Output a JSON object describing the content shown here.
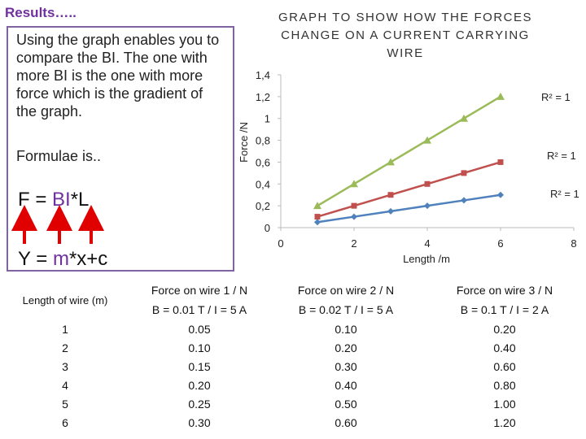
{
  "heading": "Results…..",
  "explanation": "Using the graph enables you to compare the BI. The one with more BI is the one with more force which is the gradient of the graph.",
  "formula_label": "Formulae is..",
  "formulas": [
    [
      "F = ",
      "BI",
      "*L"
    ],
    [
      "Y = ",
      "m",
      "*x+c"
    ]
  ],
  "chart_data": {
    "type": "line",
    "title": "GRAPH TO SHOW HOW THE FORCES CHANGE ON A CURRENT CARRYING WIRE",
    "x_label": "Length /m",
    "y_label": "Force /N",
    "x": [
      1,
      2,
      3,
      4,
      5,
      6
    ],
    "series": [
      {
        "color": "#4f81bd",
        "marker": "diamond",
        "values": [
          0.05,
          0.1,
          0.15,
          0.2,
          0.25,
          0.3
        ]
      },
      {
        "color": "#c0504d",
        "marker": "square",
        "values": [
          0.1,
          0.2,
          0.3,
          0.4,
          0.5,
          0.6
        ]
      },
      {
        "color": "#9bbb59",
        "marker": "triangle",
        "values": [
          0.2,
          0.4,
          0.6,
          0.8,
          1.0,
          1.2
        ]
      }
    ],
    "annotations": [
      "R² = 1",
      "R² = 1",
      "R² = 1"
    ],
    "xlim": [
      0,
      8
    ],
    "xticks": [
      0,
      2,
      4,
      6,
      8
    ],
    "ylim": [
      0,
      1.4
    ],
    "yticks": [
      0,
      {
        "value": 0.2,
        "label": "0,2"
      },
      {
        "value": 0.4,
        "label": "0,4"
      },
      {
        "value": 0.6,
        "label": "0,6"
      },
      {
        "value": 0.8,
        "label": "0,8"
      },
      1,
      {
        "value": 1.2,
        "label": "1,2"
      },
      {
        "value": 1.4,
        "label": "1,4"
      }
    ]
  },
  "table": {
    "header": [
      [
        "Length of wire (m)",
        ""
      ],
      [
        "Force on wire 1 /  N",
        "B = 0.01 T / I = 5 A"
      ],
      [
        "Force on wire 2  / N",
        "B = 0.02 T / I = 5 A"
      ],
      [
        "Force on wire 3  / N",
        "B = 0.1 T / I = 2 A"
      ]
    ],
    "rows": [
      [
        "1",
        "0.05",
        "0.10",
        "0.20"
      ],
      [
        "2",
        "0.10",
        "0.20",
        "0.40"
      ],
      [
        "3",
        "0.15",
        "0.30",
        "0.60"
      ],
      [
        "4",
        "0.20",
        "0.40",
        "0.80"
      ],
      [
        "5",
        "0.25",
        "0.50",
        "1.00"
      ],
      [
        "6",
        "0.30",
        "0.60",
        "1.20"
      ]
    ]
  }
}
